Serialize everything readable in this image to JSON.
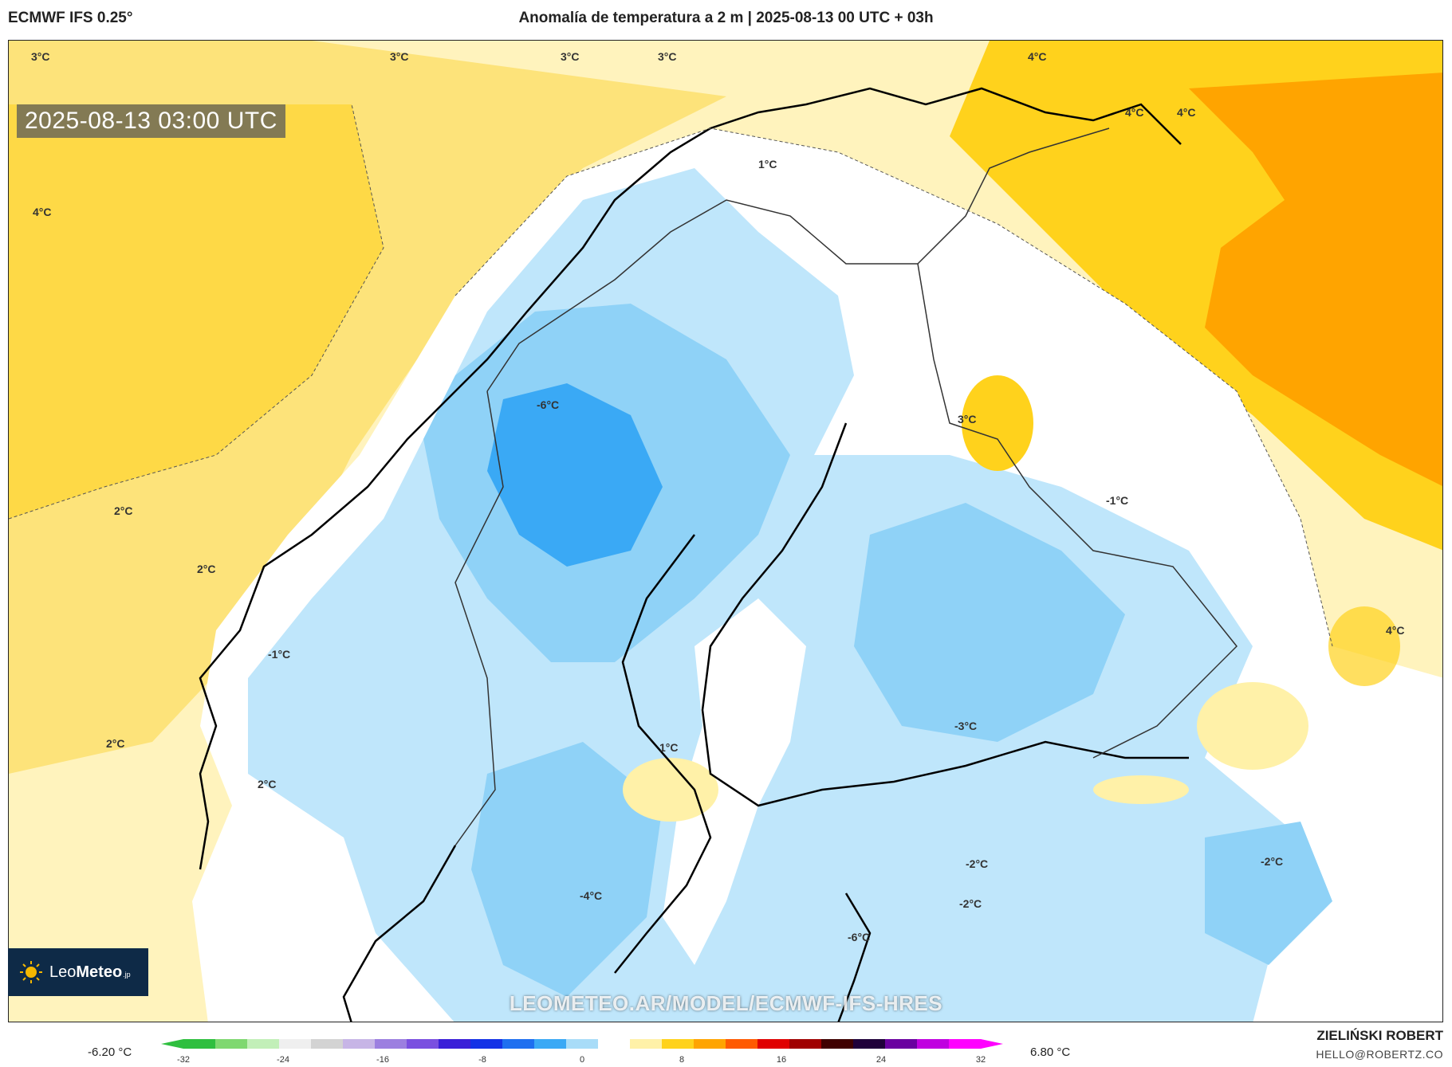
{
  "header": {
    "model": "ECMWF IFS 0.25°",
    "title": "Anomalía de temperatura a 2 m | 2025-08-13 00 UTC + 03h"
  },
  "map": {
    "timestamp": "2025-08-13 03:00 UTC",
    "contour_labels": [
      "3°C",
      "3°C",
      "3°C",
      "3°C",
      "4°C",
      "4°C",
      "1°C",
      "4°C",
      "4°C",
      "-6°C",
      "3°C",
      "2°C",
      "-1°C",
      "2°C",
      "-2°C",
      "-1°C",
      "-3°C",
      "4°C",
      "2°C",
      "1°C",
      "2°C",
      "-4°C",
      "-2°C",
      "-2°C",
      "-6°C"
    ],
    "watermark": "LEOMETEO.AR/MODEL/ECMWF-IFS-HRES"
  },
  "logo": {
    "prefix": "Leo",
    "bold": "Meteo",
    "suffix": ".jp"
  },
  "colorbar": {
    "min_label": "-6.20 °C",
    "max_label": "6.80 °C",
    "ticks": [
      "-32",
      "-24",
      "-16",
      "-8",
      "0",
      "8",
      "16",
      "24",
      "32"
    ],
    "colors": [
      "#2fbf3f",
      "#7fd870",
      "#c2efb8",
      "#efefef",
      "#d3d3d3",
      "#c7b5e6",
      "#9c7fe0",
      "#7a4fe0",
      "#3a1fd8",
      "#1432e6",
      "#1e6ff0",
      "#3aa9f5",
      "#a8dcf8",
      "#ffffff",
      "#fff1a8",
      "#ffd21c",
      "#ffa400",
      "#ff5a00",
      "#e00000",
      "#a00000",
      "#400000",
      "#20003a",
      "#6a00a0",
      "#c000e0",
      "#ff00ff"
    ]
  },
  "credit": {
    "name": "ZIELIŃSKI ROBERT",
    "email": "HELLO@ROBERTZ.CO"
  }
}
